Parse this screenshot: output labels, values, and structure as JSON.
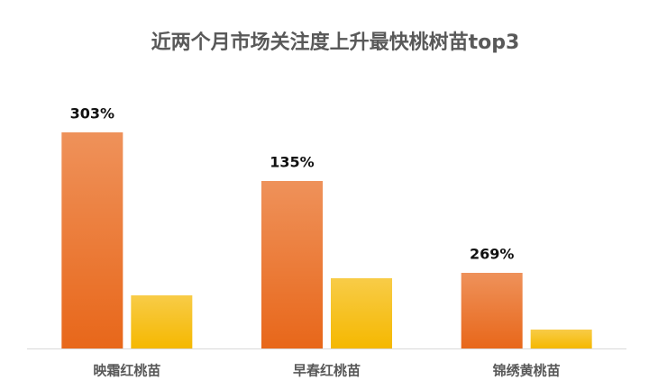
{
  "chart_data": {
    "type": "bar",
    "title": "近两个月市场关注度上升最快桃树苗top3",
    "categories": [
      "映霜红桃苗",
      "早春红桃苗",
      "锦绣黄桃苗"
    ],
    "annotations": [
      "303%",
      "135%",
      "269%"
    ],
    "series": [
      {
        "color": "#e8671a",
        "values": [
          240,
          186,
          84
        ]
      },
      {
        "color": "#f5b800",
        "values": [
          59,
          78,
          21
        ]
      }
    ],
    "ylim": [
      0,
      260
    ]
  }
}
